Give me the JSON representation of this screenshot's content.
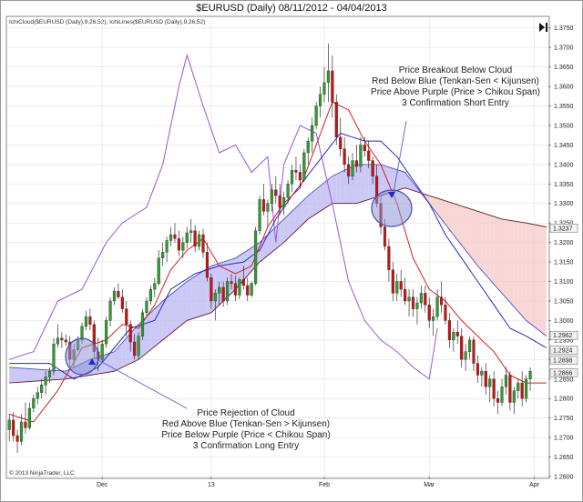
{
  "title": "$EURUSD (Daily)  08/11/2012 - 04/04/2013",
  "indicator_labels": [
    "IchiCloud($EURUSD (Daily),9,26,52), IchiLines($EURUSD (Daily),9,26,52)"
  ],
  "copyright": "© 2013 NinjaTrader, LLC",
  "colors": {
    "bull": "#2e9e2e",
    "bear": "#cc1111",
    "tenkan": "#d42020",
    "kijun": "#2a2ac0",
    "chikou": "#9a55d8",
    "span_a": "#4a52c8",
    "span_b": "#6b1a1a",
    "cloud_bull": "#b9b6f2",
    "cloud_bear": "#f6c8c8",
    "circle_fill": "#8f93d6",
    "circle_stroke": "#4651b8"
  },
  "annotations": {
    "short_entry": [
      "Price Breakout Below Cloud",
      "Red Below Blue (Tenkan-Sen < Kijunsen)",
      "Price Above Purple (Price > Chikou Span)",
      "3 Confirmation Short Entry"
    ],
    "long_entry": [
      "Price Rejection of Cloud",
      "Red Above Blue (Tenkan-Sen > Kijunsen)",
      "Price Below Purple (Price < Chikou Span)",
      "3 Confirmation Long Entry"
    ]
  },
  "price_badges": [
    "1.3237",
    "1.2962",
    "1.2924",
    "1.2898",
    "1.2866"
  ],
  "chart_data": {
    "type": "candlestick",
    "title": "$EURUSD (Daily)  08/11/2012 - 04/04/2013",
    "y_ticks": [
      "1.3750",
      "1.3700",
      "1.3650",
      "1.3600",
      "1.3550",
      "1.3500",
      "1.3450",
      "1.3400",
      "1.3350",
      "1.3300",
      "1.3250",
      "1.3200",
      "1.3150",
      "1.3100",
      "1.3050",
      "1.3000",
      "1.2950",
      "1.2900",
      "1.2850",
      "1.2800",
      "1.2750",
      "1.2700",
      "1.2650",
      "1.2600"
    ],
    "ylim": [
      1.26,
      1.3775
    ],
    "x_ticks": [
      {
        "label": "Dec",
        "bar": 23
      },
      {
        "label": "13",
        "bar": 50
      },
      {
        "label": "Feb",
        "bar": 78
      },
      {
        "label": "Mar",
        "bar": 104
      },
      {
        "label": "Apr",
        "bar": 130
      }
    ],
    "n_bars": 134,
    "ohlc": [
      [
        1.272,
        1.276,
        1.269,
        1.2745
      ],
      [
        1.2745,
        1.2765,
        1.269,
        1.2705
      ],
      [
        1.2705,
        1.272,
        1.266,
        1.269
      ],
      [
        1.269,
        1.276,
        1.268,
        1.274
      ],
      [
        1.274,
        1.279,
        1.271,
        1.2725
      ],
      [
        1.2725,
        1.279,
        1.272,
        1.2775
      ],
      [
        1.2775,
        1.281,
        1.2765,
        1.28
      ],
      [
        1.28,
        1.283,
        1.2785,
        1.2815
      ],
      [
        1.2815,
        1.285,
        1.28,
        1.2835
      ],
      [
        1.2835,
        1.287,
        1.281,
        1.2855
      ],
      [
        1.2855,
        1.288,
        1.284,
        1.287
      ],
      [
        1.287,
        1.2955,
        1.286,
        1.294
      ],
      [
        1.294,
        1.299,
        1.293,
        1.2955
      ],
      [
        1.2955,
        1.297,
        1.293,
        1.295
      ],
      [
        1.295,
        1.2965,
        1.2935,
        1.2945
      ],
      [
        1.2945,
        1.296,
        1.288,
        1.29
      ],
      [
        1.29,
        1.294,
        1.288,
        1.2925
      ],
      [
        1.2925,
        1.296,
        1.292,
        1.295
      ],
      [
        1.295,
        1.2995,
        1.294,
        1.2985
      ],
      [
        1.2985,
        1.3025,
        1.2975,
        1.301
      ],
      [
        1.301,
        1.303,
        1.2975,
        1.299
      ],
      [
        1.299,
        1.3,
        1.29,
        1.292
      ],
      [
        1.292,
        1.2955,
        1.287,
        1.29
      ],
      [
        1.29,
        1.295,
        1.2895,
        1.294
      ],
      [
        1.294,
        1.301,
        1.293,
        1.3
      ],
      [
        1.3,
        1.306,
        1.2985,
        1.305
      ],
      [
        1.305,
        1.3085,
        1.304,
        1.3075
      ],
      [
        1.3075,
        1.3095,
        1.3055,
        1.306
      ],
      [
        1.306,
        1.308,
        1.302,
        1.303
      ],
      [
        1.303,
        1.305,
        1.296,
        1.299
      ],
      [
        1.299,
        1.3,
        1.292,
        1.2945
      ],
      [
        1.2945,
        1.2965,
        1.29,
        1.291
      ],
      [
        1.291,
        1.297,
        1.29,
        1.296
      ],
      [
        1.296,
        1.303,
        1.295,
        1.302
      ],
      [
        1.302,
        1.306,
        1.301,
        1.305
      ],
      [
        1.305,
        1.309,
        1.304,
        1.308
      ],
      [
        1.308,
        1.311,
        1.306,
        1.3095
      ],
      [
        1.3095,
        1.318,
        1.309,
        1.316
      ],
      [
        1.316,
        1.32,
        1.314,
        1.3175
      ],
      [
        1.3175,
        1.3215,
        1.315,
        1.3205
      ],
      [
        1.3205,
        1.324,
        1.319,
        1.322
      ],
      [
        1.322,
        1.325,
        1.32,
        1.321
      ],
      [
        1.321,
        1.323,
        1.3165,
        1.318
      ],
      [
        1.318,
        1.3215,
        1.316,
        1.32
      ],
      [
        1.32,
        1.324,
        1.3185,
        1.3225
      ],
      [
        1.3225,
        1.326,
        1.32,
        1.323
      ],
      [
        1.323,
        1.3245,
        1.3175,
        1.319
      ],
      [
        1.319,
        1.323,
        1.318,
        1.322
      ],
      [
        1.322,
        1.3235,
        1.316,
        1.3175
      ],
      [
        1.3175,
        1.32,
        1.31,
        1.311
      ],
      [
        1.311,
        1.312,
        1.303,
        1.305
      ],
      [
        1.305,
        1.308,
        1.3,
        1.307
      ],
      [
        1.307,
        1.31,
        1.304,
        1.3085
      ],
      [
        1.3085,
        1.31,
        1.3035,
        1.305
      ],
      [
        1.305,
        1.311,
        1.304,
        1.31
      ],
      [
        1.31,
        1.312,
        1.308,
        1.3095
      ],
      [
        1.3095,
        1.3115,
        1.305,
        1.3065
      ],
      [
        1.3065,
        1.311,
        1.3055,
        1.3105
      ],
      [
        1.3105,
        1.314,
        1.308,
        1.309
      ],
      [
        1.309,
        1.311,
        1.305,
        1.3065
      ],
      [
        1.3065,
        1.31,
        1.306,
        1.3095
      ],
      [
        1.3095,
        1.324,
        1.309,
        1.323
      ],
      [
        1.323,
        1.332,
        1.322,
        1.331
      ],
      [
        1.331,
        1.335,
        1.327,
        1.328
      ],
      [
        1.328,
        1.331,
        1.324,
        1.33
      ],
      [
        1.33,
        1.335,
        1.328,
        1.3335
      ],
      [
        1.3335,
        1.337,
        1.33,
        1.332
      ],
      [
        1.332,
        1.335,
        1.327,
        1.329
      ],
      [
        1.329,
        1.333,
        1.327,
        1.3315
      ],
      [
        1.3315,
        1.336,
        1.33,
        1.335
      ],
      [
        1.335,
        1.34,
        1.333,
        1.3385
      ],
      [
        1.3385,
        1.342,
        1.336,
        1.338
      ],
      [
        1.338,
        1.34,
        1.334,
        1.336
      ],
      [
        1.336,
        1.344,
        1.3355,
        1.343
      ],
      [
        1.343,
        1.347,
        1.34,
        1.346
      ],
      [
        1.346,
        1.352,
        1.343,
        1.35
      ],
      [
        1.35,
        1.356,
        1.349,
        1.355
      ],
      [
        1.355,
        1.36,
        1.352,
        1.358
      ],
      [
        1.358,
        1.365,
        1.356,
        1.361
      ],
      [
        1.361,
        1.371,
        1.356,
        1.364
      ],
      [
        1.364,
        1.368,
        1.352,
        1.356
      ],
      [
        1.356,
        1.358,
        1.345,
        1.347
      ],
      [
        1.347,
        1.352,
        1.342,
        1.344
      ],
      [
        1.344,
        1.347,
        1.338,
        1.34
      ],
      [
        1.34,
        1.342,
        1.335,
        1.337
      ],
      [
        1.337,
        1.343,
        1.336,
        1.341
      ],
      [
        1.341,
        1.345,
        1.338,
        1.3395
      ],
      [
        1.3395,
        1.347,
        1.338,
        1.345
      ],
      [
        1.345,
        1.347,
        1.342,
        1.3435
      ],
      [
        1.3435,
        1.346,
        1.339,
        1.341
      ],
      [
        1.341,
        1.342,
        1.335,
        1.337
      ],
      [
        1.337,
        1.34,
        1.329,
        1.33
      ],
      [
        1.33,
        1.332,
        1.322,
        1.324
      ],
      [
        1.324,
        1.326,
        1.318,
        1.319
      ],
      [
        1.319,
        1.321,
        1.31,
        1.313
      ],
      [
        1.313,
        1.315,
        1.305,
        1.307
      ],
      [
        1.307,
        1.312,
        1.305,
        1.31
      ],
      [
        1.31,
        1.313,
        1.306,
        1.308
      ],
      [
        1.308,
        1.311,
        1.304,
        1.305
      ],
      [
        1.305,
        1.308,
        1.301,
        1.306
      ],
      [
        1.306,
        1.308,
        1.301,
        1.303
      ],
      [
        1.303,
        1.306,
        1.299,
        1.3045
      ],
      [
        1.3045,
        1.309,
        1.303,
        1.307
      ],
      [
        1.307,
        1.309,
        1.302,
        1.304
      ],
      [
        1.304,
        1.306,
        1.298,
        1.3
      ],
      [
        1.3,
        1.303,
        1.296,
        1.301
      ],
      [
        1.301,
        1.308,
        1.3,
        1.306
      ],
      [
        1.306,
        1.31,
        1.302,
        1.304
      ],
      [
        1.304,
        1.306,
        1.299,
        1.3
      ],
      [
        1.3,
        1.302,
        1.293,
        1.295
      ],
      [
        1.295,
        1.298,
        1.292,
        1.297
      ],
      [
        1.297,
        1.3,
        1.294,
        1.296
      ],
      [
        1.296,
        1.298,
        1.288,
        1.29
      ],
      [
        1.29,
        1.294,
        1.287,
        1.292
      ],
      [
        1.292,
        1.296,
        1.29,
        1.295
      ],
      [
        1.295,
        1.296,
        1.287,
        1.289
      ],
      [
        1.289,
        1.291,
        1.284,
        1.286
      ],
      [
        1.286,
        1.288,
        1.283,
        1.287
      ],
      [
        1.287,
        1.289,
        1.281,
        1.283
      ],
      [
        1.283,
        1.286,
        1.279,
        1.285
      ],
      [
        1.285,
        1.287,
        1.278,
        1.28
      ],
      [
        1.28,
        1.282,
        1.276,
        1.279
      ],
      [
        1.279,
        1.285,
        1.278,
        1.283
      ],
      [
        1.283,
        1.288,
        1.281,
        1.286
      ],
      [
        1.286,
        1.287,
        1.277,
        1.279
      ],
      [
        1.279,
        1.283,
        1.276,
        1.282
      ],
      [
        1.282,
        1.285,
        1.28,
        1.284
      ],
      [
        1.284,
        1.287,
        1.278,
        1.28
      ],
      [
        1.28,
        1.286,
        1.279,
        1.285
      ],
      [
        1.285,
        1.288,
        1.282,
        1.287
      ]
    ],
    "tenkan": [
      [
        0,
        1.276
      ],
      [
        6,
        1.274
      ],
      [
        12,
        1.282
      ],
      [
        18,
        1.293
      ],
      [
        24,
        1.295
      ],
      [
        28,
        1.299
      ],
      [
        32,
        1.298
      ],
      [
        36,
        1.304
      ],
      [
        40,
        1.313
      ],
      [
        44,
        1.318
      ],
      [
        48,
        1.321
      ],
      [
        52,
        1.314
      ],
      [
        56,
        1.312
      ],
      [
        60,
        1.314
      ],
      [
        64,
        1.324
      ],
      [
        68,
        1.33
      ],
      [
        72,
        1.334
      ],
      [
        76,
        1.345
      ],
      [
        80,
        1.356
      ],
      [
        84,
        1.354
      ],
      [
        88,
        1.346
      ],
      [
        92,
        1.34
      ],
      [
        96,
        1.33
      ],
      [
        100,
        1.316
      ],
      [
        104,
        1.308
      ],
      [
        108,
        1.305
      ],
      [
        112,
        1.3
      ],
      [
        116,
        1.296
      ],
      [
        120,
        1.292
      ],
      [
        124,
        1.286
      ],
      [
        128,
        1.284
      ],
      [
        133,
        1.284
      ]
    ],
    "kijun": [
      [
        0,
        1.289
      ],
      [
        10,
        1.289
      ],
      [
        16,
        1.285
      ],
      [
        22,
        1.288
      ],
      [
        26,
        1.293
      ],
      [
        30,
        1.298
      ],
      [
        36,
        1.3
      ],
      [
        40,
        1.308
      ],
      [
        46,
        1.312
      ],
      [
        52,
        1.314
      ],
      [
        58,
        1.315
      ],
      [
        62,
        1.318
      ],
      [
        66,
        1.326
      ],
      [
        70,
        1.332
      ],
      [
        76,
        1.34
      ],
      [
        82,
        1.348
      ],
      [
        88,
        1.346
      ],
      [
        92,
        1.346
      ],
      [
        96,
        1.342
      ],
      [
        100,
        1.336
      ],
      [
        104,
        1.33
      ],
      [
        108,
        1.322
      ],
      [
        112,
        1.316
      ],
      [
        116,
        1.31
      ],
      [
        120,
        1.304
      ],
      [
        124,
        1.298
      ],
      [
        128,
        1.296
      ],
      [
        133,
        1.293
      ]
    ],
    "chikou": [
      [
        0,
        1.29
      ],
      [
        6,
        1.292
      ],
      [
        12,
        1.305
      ],
      [
        18,
        1.308
      ],
      [
        24,
        1.32
      ],
      [
        28,
        1.325
      ],
      [
        34,
        1.329
      ],
      [
        38,
        1.34
      ],
      [
        42,
        1.36
      ],
      [
        44,
        1.368
      ],
      [
        48,
        1.355
      ],
      [
        52,
        1.343
      ],
      [
        56,
        1.345
      ],
      [
        60,
        1.338
      ],
      [
        64,
        1.342
      ],
      [
        66,
        1.32
      ],
      [
        68,
        1.34
      ],
      [
        72,
        1.35
      ],
      [
        76,
        1.348
      ],
      [
        80,
        1.33
      ],
      [
        84,
        1.31
      ],
      [
        88,
        1.3
      ],
      [
        92,
        1.295
      ],
      [
        96,
        1.292
      ],
      [
        100,
        1.288
      ],
      [
        104,
        1.285
      ],
      [
        106,
        1.298
      ]
    ],
    "span_a": [
      [
        0,
        1.288
      ],
      [
        14,
        1.287
      ],
      [
        20,
        1.29
      ],
      [
        26,
        1.292
      ],
      [
        32,
        1.299
      ],
      [
        38,
        1.305
      ],
      [
        44,
        1.31
      ],
      [
        50,
        1.314
      ],
      [
        56,
        1.316
      ],
      [
        62,
        1.32
      ],
      [
        68,
        1.326
      ],
      [
        74,
        1.332
      ],
      [
        80,
        1.337
      ],
      [
        86,
        1.34
      ],
      [
        92,
        1.34
      ],
      [
        98,
        1.338
      ],
      [
        104,
        1.33
      ],
      [
        110,
        1.322
      ],
      [
        116,
        1.314
      ],
      [
        122,
        1.307
      ],
      [
        128,
        1.3
      ],
      [
        133,
        1.296
      ]
    ],
    "span_b": [
      [
        0,
        1.284
      ],
      [
        14,
        1.285
      ],
      [
        20,
        1.286
      ],
      [
        26,
        1.287
      ],
      [
        32,
        1.29
      ],
      [
        38,
        1.295
      ],
      [
        44,
        1.3
      ],
      [
        50,
        1.302
      ],
      [
        56,
        1.308
      ],
      [
        62,
        1.315
      ],
      [
        68,
        1.32
      ],
      [
        74,
        1.326
      ],
      [
        80,
        1.33
      ],
      [
        86,
        1.33
      ],
      [
        92,
        1.332
      ],
      [
        98,
        1.334
      ],
      [
        104,
        1.332
      ],
      [
        110,
        1.33
      ],
      [
        116,
        1.328
      ],
      [
        122,
        1.326
      ],
      [
        128,
        1.325
      ],
      [
        133,
        1.324
      ]
    ]
  }
}
